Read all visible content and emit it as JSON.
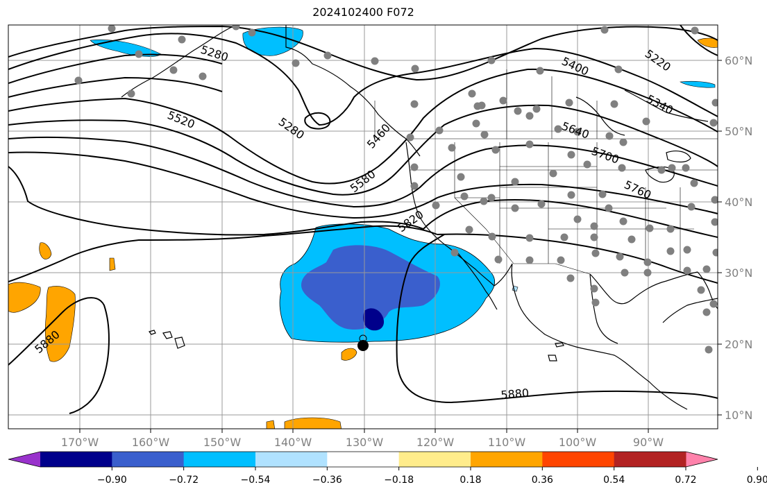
{
  "title": "2024102400 F072",
  "map": {
    "lon_ticks": [
      "170°W",
      "160°W",
      "150°W",
      "140°W",
      "130°W",
      "120°W",
      "110°W",
      "100°W",
      "90°W"
    ],
    "lat_ticks": [
      "60°N",
      "50°N",
      "40°N",
      "30°N",
      "20°N",
      "10°N"
    ],
    "gridlines": true
  },
  "contour_labels": [
    "5280",
    "5280",
    "5520",
    "5460",
    "5580",
    "5820",
    "5880",
    "5880",
    "5400",
    "5220",
    "5340",
    "5640",
    "5700",
    "5760"
  ],
  "colorbar": {
    "colors": [
      "#9932CC",
      "#00008B",
      "#3A5FCD",
      "#00BFFF",
      "#B0E2FF",
      "#FFFFFF",
      "#FFEC8B",
      "#FFA500",
      "#FF4500",
      "#B22222",
      "#FF82AB"
    ],
    "labels": [
      "−0.90",
      "−0.72",
      "−0.54",
      "−0.36",
      "−0.18",
      "0.18",
      "0.36",
      "0.54",
      "0.72",
      "0.90"
    ]
  }
}
